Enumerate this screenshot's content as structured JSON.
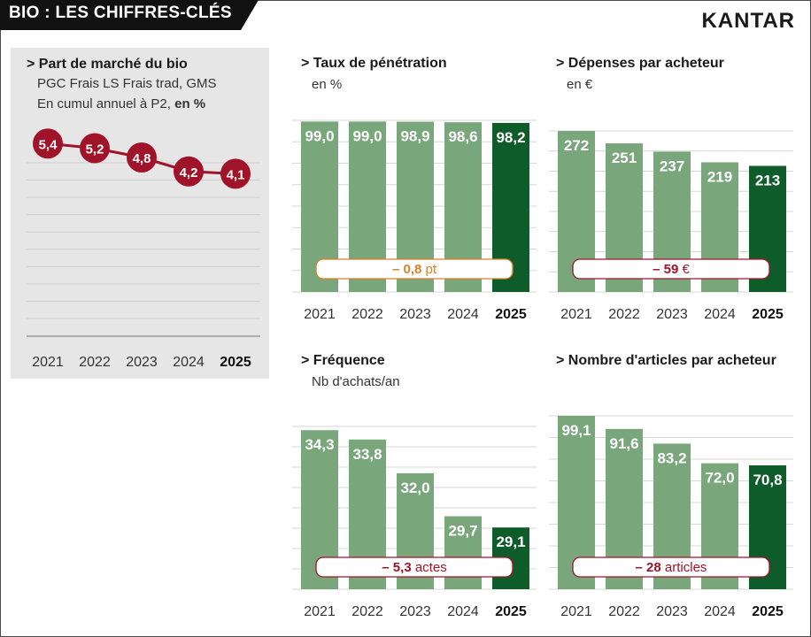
{
  "header": {
    "title": "BIO : LES CHIFFRES-CLÉS",
    "brand": "KANTAR"
  },
  "colors": {
    "bar_light": "#7aa67c",
    "bar_dark": "#0f5c2b",
    "line_red": "#a0142a",
    "orange": "#d9822b"
  },
  "chart_data": [
    {
      "id": "market_share",
      "type": "line",
      "title": "> Part de marché du bio",
      "subtitle_line1": "PGC Frais LS Frais trad, GMS",
      "subtitle_line2_prefix": "En cumul annuel à P2, ",
      "subtitle_line2_bold": "en %",
      "categories": [
        "2021",
        "2022",
        "2023",
        "2024",
        "2025"
      ],
      "values": [
        5.4,
        5.2,
        4.8,
        4.2,
        4.1
      ],
      "labels": [
        "5,4",
        "5,2",
        "4,8",
        "4,2",
        "4,1"
      ],
      "ylim": [
        0,
        6.4
      ]
    },
    {
      "id": "penetration",
      "type": "bar",
      "title": "> Taux de pénétration",
      "subtitle": "en %",
      "categories": [
        "2021",
        "2022",
        "2023",
        "2024",
        "2025"
      ],
      "values": [
        99.0,
        99.0,
        98.9,
        98.6,
        98.2
      ],
      "labels": [
        "99,0",
        "99,0",
        "98,9",
        "98,6",
        "98,2"
      ],
      "ylim": [
        0,
        99.7
      ],
      "delta_bold": "– 0,8",
      "delta_unit": " pt",
      "delta_color": "orange"
    },
    {
      "id": "spend",
      "type": "bar",
      "title": "> Dépenses par acheteur",
      "subtitle": "en €",
      "categories": [
        "2021",
        "2022",
        "2023",
        "2024",
        "2025"
      ],
      "values": [
        272,
        251,
        237,
        219,
        213
      ],
      "labels": [
        "272",
        "251",
        "237",
        "219",
        "213"
      ],
      "ylim": [
        0,
        272
      ],
      "delta_bold": "– 59",
      "delta_unit": " €",
      "delta_color": "red"
    },
    {
      "id": "frequency",
      "type": "bar",
      "title": "> Fréquence",
      "subtitle": "Nb d'achats/an",
      "categories": [
        "2021",
        "2022",
        "2023",
        "2024",
        "2025"
      ],
      "values": [
        34.3,
        33.8,
        32.0,
        29.7,
        29.1
      ],
      "labels": [
        "34,3",
        "33,8",
        "32,0",
        "29,7",
        "29,1"
      ],
      "ylim": [
        25.8,
        34.5
      ],
      "delta_bold": "– 5,3",
      "delta_unit": " actes",
      "delta_color": "red"
    },
    {
      "id": "articles",
      "type": "bar",
      "title": "> Nombre d'articles par acheteur",
      "subtitle": "",
      "categories": [
        "2021",
        "2022",
        "2023",
        "2024",
        "2025"
      ],
      "values": [
        99.1,
        91.6,
        83.2,
        72.0,
        70.8
      ],
      "labels": [
        "99,1",
        "91,6",
        "83,2",
        "72,0",
        "70,8"
      ],
      "ylim": [
        0,
        99.1
      ],
      "delta_bold": "– 28",
      "delta_unit": " articles",
      "delta_color": "red"
    }
  ]
}
